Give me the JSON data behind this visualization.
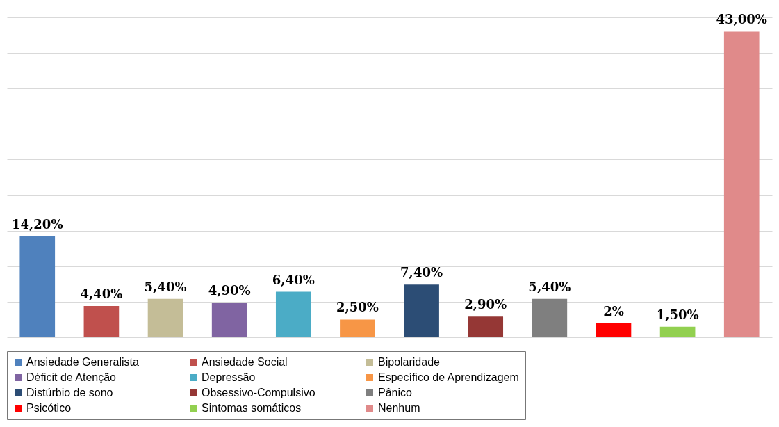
{
  "chart_data": {
    "type": "bar",
    "categories": [
      null,
      null,
      null,
      null,
      null,
      null,
      null,
      null,
      null,
      null,
      null,
      null
    ],
    "series": [
      {
        "name": "Ansiedade Generalista",
        "color": "#4f81bd",
        "values": [
          14.2,
          null,
          null,
          null,
          null,
          null,
          null,
          null,
          null,
          null,
          null,
          null
        ],
        "value_labels": [
          "14,20%",
          null,
          null,
          null,
          null,
          null,
          null,
          null,
          null,
          null,
          null,
          null
        ]
      },
      {
        "name": "Ansiedade Social",
        "color": "#c0504d",
        "values": [
          null,
          4.4,
          null,
          null,
          null,
          null,
          null,
          null,
          null,
          null,
          null,
          null
        ],
        "value_labels": [
          null,
          "4,40%",
          null,
          null,
          null,
          null,
          null,
          null,
          null,
          null,
          null,
          null
        ]
      },
      {
        "name": "Bipolaridade",
        "color": "#c4bd97",
        "values": [
          null,
          null,
          5.4,
          null,
          null,
          null,
          null,
          null,
          null,
          null,
          null,
          null
        ],
        "value_labels": [
          null,
          null,
          "5,40%",
          null,
          null,
          null,
          null,
          null,
          null,
          null,
          null,
          null
        ]
      },
      {
        "name": "Déficit de Atenção",
        "color": "#8064a2",
        "values": [
          null,
          null,
          null,
          4.9,
          null,
          null,
          null,
          null,
          null,
          null,
          null,
          null
        ],
        "value_labels": [
          null,
          null,
          null,
          "4,90%",
          null,
          null,
          null,
          null,
          null,
          null,
          null,
          null
        ]
      },
      {
        "name": "Depressão",
        "color": "#4bacc6",
        "values": [
          null,
          null,
          null,
          null,
          6.4,
          null,
          null,
          null,
          null,
          null,
          null,
          null
        ],
        "value_labels": [
          null,
          null,
          null,
          null,
          "6,40%",
          null,
          null,
          null,
          null,
          null,
          null,
          null
        ]
      },
      {
        "name": "Específico de Aprendizagem",
        "color": "#f79646",
        "values": [
          null,
          null,
          null,
          null,
          null,
          2.5,
          null,
          null,
          null,
          null,
          null,
          null
        ],
        "value_labels": [
          null,
          null,
          null,
          null,
          null,
          "2,50%",
          null,
          null,
          null,
          null,
          null,
          null
        ]
      },
      {
        "name": "Distúrbio de sono",
        "color": "#2c4d75",
        "values": [
          null,
          null,
          null,
          null,
          null,
          null,
          7.4,
          null,
          null,
          null,
          null,
          null
        ],
        "value_labels": [
          null,
          null,
          null,
          null,
          null,
          null,
          "7,40%",
          null,
          null,
          null,
          null,
          null
        ]
      },
      {
        "name": "Obsessivo-Compulsivo",
        "color": "#953735",
        "values": [
          null,
          null,
          null,
          null,
          null,
          null,
          null,
          2.9,
          null,
          null,
          null,
          null
        ],
        "value_labels": [
          null,
          null,
          null,
          null,
          null,
          null,
          null,
          "2,90%",
          null,
          null,
          null,
          null
        ]
      },
      {
        "name": "Pânico",
        "color": "#7f7f7f",
        "values": [
          null,
          null,
          null,
          null,
          null,
          null,
          null,
          null,
          5.4,
          null,
          null,
          null
        ],
        "value_labels": [
          null,
          null,
          null,
          null,
          null,
          null,
          null,
          null,
          "5,40%",
          null,
          null,
          null
        ]
      },
      {
        "name": "Psicótico",
        "color": "#ff0000",
        "values": [
          null,
          null,
          null,
          null,
          null,
          null,
          null,
          null,
          null,
          2,
          null,
          null
        ],
        "value_labels": [
          null,
          null,
          null,
          null,
          null,
          null,
          null,
          null,
          null,
          "2%",
          null,
          null
        ]
      },
      {
        "name": "Sintomas somáticos",
        "color": "#92d050",
        "values": [
          null,
          null,
          null,
          null,
          null,
          null,
          null,
          null,
          null,
          null,
          1.5,
          null
        ],
        "value_labels": [
          null,
          null,
          null,
          null,
          null,
          null,
          null,
          null,
          null,
          null,
          "1,50%",
          null
        ]
      },
      {
        "name": "Nenhum",
        "color": "#e08a8a",
        "values": [
          null,
          null,
          null,
          null,
          null,
          null,
          null,
          null,
          null,
          null,
          null,
          43
        ],
        "value_labels": [
          null,
          null,
          null,
          null,
          null,
          null,
          null,
          null,
          null,
          null,
          null,
          "43,00%"
        ]
      }
    ],
    "stacked": true,
    "grid": "y",
    "legend": "bottom"
  }
}
